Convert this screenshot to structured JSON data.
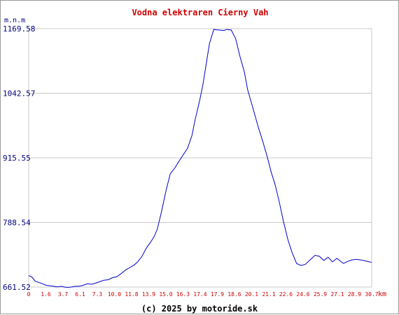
{
  "chart_data": {
    "type": "line",
    "title": "Vodna elektraren Cierny Vah",
    "ylabel": "m.n.m",
    "xunit": "km",
    "credit": "(c) 2025 by motoride.sk",
    "grid": true,
    "ylim": [
      661.52,
      1169.58
    ],
    "xlim": [
      0,
      31.5
    ],
    "yticks": [
      "661.52",
      "788.54",
      "915.55",
      "1042.57",
      "1169.58"
    ],
    "xticks": [
      "0",
      "1.6",
      "3.7",
      "6.1",
      "7.3",
      "10.0",
      "11.8",
      "13.9",
      "15.0",
      "16.3",
      "17.4",
      "17.9",
      "18.6",
      "20.1",
      "21.1",
      "22.6",
      "24.6",
      "25.9",
      "27.1",
      "28.9",
      "30.7"
    ],
    "colors": {
      "title": "#cc0000",
      "line": "#0000cc",
      "axis_text": "#000080",
      "x_ticks": "#cc0000",
      "grid": "#c8c8c8",
      "credit": "#000000"
    },
    "series": [
      {
        "x": [
          0,
          0.3,
          0.6,
          1.0,
          1.3,
          1.6,
          2.0,
          2.3,
          2.6,
          3.0,
          3.4,
          3.7,
          4.0,
          4.3,
          4.6,
          5.0,
          5.4,
          5.8,
          6.1,
          6.5,
          6.9,
          7.3,
          7.7,
          8.1,
          8.5,
          8.9,
          9.3,
          9.7,
          10.0,
          10.4,
          10.8,
          11.2,
          11.5,
          11.8,
          12.2,
          12.6,
          13.0,
          13.4,
          13.9,
          14.3,
          14.6,
          15.0,
          15.3,
          15.7,
          16.0,
          16.3,
          16.6,
          17.0,
          17.4,
          17.9,
          18.2,
          18.6,
          19.0,
          19.4,
          19.8,
          20.1,
          20.5,
          21.1,
          21.5,
          21.9,
          22.3,
          22.6,
          23.0,
          23.4,
          23.8,
          24.2,
          24.6,
          25.0,
          25.4,
          25.9,
          26.3,
          26.7,
          27.1,
          27.5,
          27.9,
          28.3,
          28.9,
          29.3,
          29.7,
          30.1,
          30.7,
          31.1,
          31.5
        ],
        "y": [
          684,
          681,
          673,
          670,
          668,
          665,
          664,
          663,
          662,
          663,
          661,
          661,
          662,
          663,
          663,
          665,
          668,
          667,
          669,
          672,
          675,
          676,
          680,
          682,
          688,
          695,
          700,
          705,
          711,
          722,
          738,
          750,
          760,
          775,
          810,
          850,
          884,
          895,
          912,
          925,
          935,
          960,
          992,
          1028,
          1060,
          1100,
          1140,
          1168,
          1167,
          1166,
          1168,
          1167,
          1150,
          1115,
          1085,
          1050,
          1020,
          975,
          948,
          918,
          885,
          865,
          830,
          790,
          755,
          729,
          708,
          704,
          706,
          716,
          724,
          722,
          714,
          720,
          711,
          718,
          708,
          712,
          715,
          716,
          714,
          712,
          710
        ]
      }
    ]
  }
}
